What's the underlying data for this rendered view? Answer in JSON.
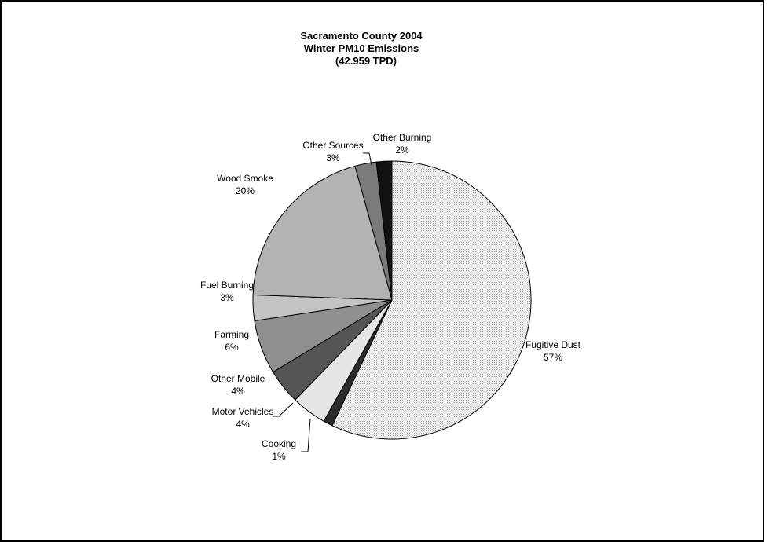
{
  "chart_data": {
    "type": "pie",
    "title": [
      "Sacramento County 2004",
      "Winter PM10 Emissions",
      "(42.959 TPD)"
    ],
    "start_angle_deg": 90,
    "direction": "clockwise",
    "slices": [
      {
        "label": "Fugitive Dust",
        "percent_label": "57%",
        "value": 57.3,
        "fill": "pattern-dots-light"
      },
      {
        "label": "Cooking",
        "percent_label": "1%",
        "value": 1.1,
        "fill": "#2b2b2b"
      },
      {
        "label": "Motor Vehicles",
        "percent_label": "4%",
        "value": 4.1,
        "fill": "#e6e6e6"
      },
      {
        "label": "Other Mobile",
        "percent_label": "4%",
        "value": 4.1,
        "fill": "#555555"
      },
      {
        "label": "Farming",
        "percent_label": "6%",
        "value": 6.3,
        "fill": "#8f8f8f"
      },
      {
        "label": "Fuel Burning",
        "percent_label": "3%",
        "value": 3.0,
        "fill": "#c4c4c4"
      },
      {
        "label": "Wood Smoke",
        "percent_label": "20%",
        "value": 20.2,
        "fill": "#b3b3b3"
      },
      {
        "label": "Other Sources",
        "percent_label": "3%",
        "value": 2.5,
        "fill": "#7a7a7a"
      },
      {
        "label": "Other Burning",
        "percent_label": "2%",
        "value": 1.8,
        "fill": "#111111"
      }
    ]
  }
}
